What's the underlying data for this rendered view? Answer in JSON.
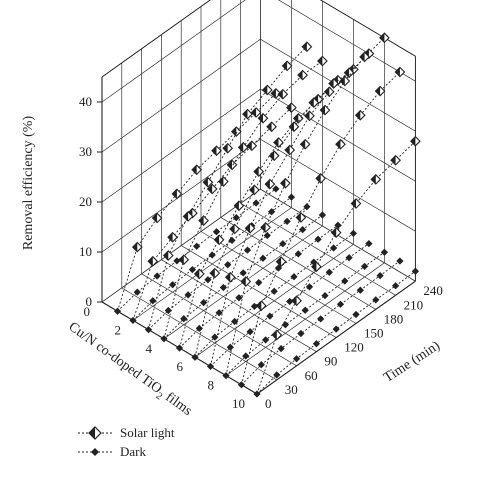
{
  "chart_data": {
    "type": "scatter",
    "ylabel": "Removal efficiency (%)",
    "xlabel": "Cu/N co-doped TiO",
    "xlabel_sub": "2",
    "xlabel_tail": " films",
    "tlabel": "Time (min)",
    "y_ticks": [
      "0",
      "10",
      "20",
      "30",
      "40"
    ],
    "x_ticks": [
      "0",
      "2",
      "4",
      "6",
      "8",
      "10"
    ],
    "t_ticks": [
      "0",
      "30",
      "60",
      "90",
      "120",
      "150",
      "180",
      "210",
      "240"
    ],
    "ylim": [
      0,
      45
    ],
    "xlim": [
      0,
      10
    ],
    "tlim": [
      0,
      240
    ],
    "grid": true,
    "legend_position": "bottom-left",
    "time_points": [
      0,
      30,
      60,
      90,
      120,
      150,
      180,
      210,
      240
    ],
    "series": [
      {
        "name": "Solar light",
        "marker": "open-diamond",
        "films": [
          {
            "film": 1,
            "values": [
              0,
              10,
              13,
              15,
              17,
              18,
              19,
              20,
              21
            ]
          },
          {
            "film": 2,
            "values": [
              0,
              9,
              11,
              13,
              15,
              17,
              18,
              19,
              20
            ]
          },
          {
            "film": 3,
            "values": [
              0,
              12,
              17,
              21,
              25,
              29,
              31,
              33,
              34
            ]
          },
          {
            "film": 4,
            "values": [
              0,
              13,
              18,
              23,
              27,
              30,
              32,
              33,
              33
            ]
          },
          {
            "film": 5,
            "values": [
              0,
              12,
              16,
              20,
              24,
              27,
              29,
              30,
              31
            ]
          },
          {
            "film": 6,
            "values": [
              0,
              14,
              20,
              25,
              29,
              32,
              34,
              35,
              35
            ]
          },
          {
            "film": 7,
            "values": [
              0,
              15,
              22,
              28,
              32,
              36,
              38,
              39,
              40
            ]
          },
          {
            "film": 8,
            "values": [
              0,
              16,
              24,
              30,
              35,
              39,
              42,
              44,
              45
            ]
          },
          {
            "film": 9,
            "values": [
              0,
              13,
              19,
              25,
              30,
              34,
              37,
              39,
              40
            ]
          },
          {
            "film": 10,
            "values": [
              0,
              9,
              13,
              17,
              21,
              24,
              26,
              27,
              28
            ]
          }
        ]
      },
      {
        "name": "Dark",
        "marker": "filled-diamond",
        "films": [
          {
            "film": 1,
            "values": [
              0,
              1.0,
              1.4,
              1.6,
              1.7,
              1.8,
              1.8,
              1.9,
              1.9
            ]
          },
          {
            "film": 2,
            "values": [
              0,
              1.1,
              1.5,
              1.7,
              1.8,
              1.9,
              2.0,
              2.0,
              2.1
            ]
          },
          {
            "film": 3,
            "values": [
              0,
              1.0,
              1.3,
              1.5,
              1.7,
              1.8,
              1.9,
              1.9,
              2.0
            ]
          },
          {
            "film": 4,
            "values": [
              0,
              1.2,
              1.6,
              1.8,
              1.9,
              2.0,
              2.1,
              2.1,
              2.2
            ]
          },
          {
            "film": 5,
            "values": [
              0,
              1.1,
              1.4,
              1.6,
              1.8,
              1.9,
              1.9,
              2.0,
              2.0
            ]
          },
          {
            "film": 6,
            "values": [
              0,
              1.2,
              1.5,
              1.7,
              1.9,
              2.0,
              2.1,
              2.1,
              2.2
            ]
          },
          {
            "film": 7,
            "values": [
              0,
              1.0,
              1.3,
              1.6,
              1.7,
              1.8,
              1.9,
              2.0,
              2.0
            ]
          },
          {
            "film": 8,
            "values": [
              0,
              1.1,
              1.5,
              1.7,
              1.8,
              1.9,
              2.0,
              2.1,
              2.1
            ]
          },
          {
            "film": 9,
            "values": [
              0,
              1.2,
              1.6,
              1.8,
              1.9,
              2.0,
              2.0,
              2.1,
              2.2
            ]
          },
          {
            "film": 10,
            "values": [
              0,
              1.0,
              1.4,
              1.6,
              1.7,
              1.8,
              1.9,
              1.9,
              2.0
            ]
          }
        ]
      }
    ]
  }
}
